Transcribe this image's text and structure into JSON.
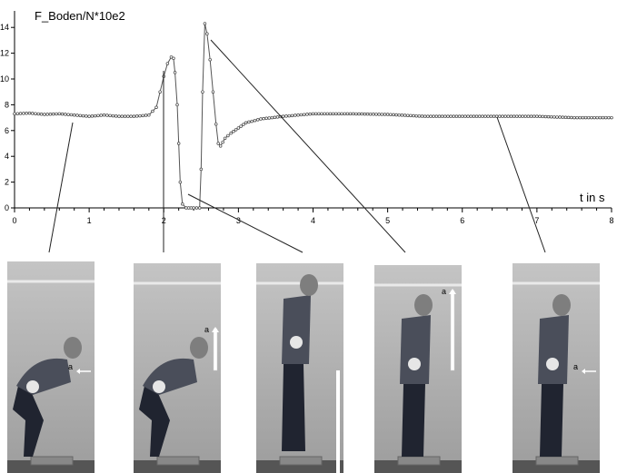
{
  "chart_data": {
    "type": "line",
    "ylabel": "F_Boden/N*10e2",
    "xlabel": "t in s",
    "xlim": [
      0,
      8
    ],
    "ylim": [
      0,
      15
    ],
    "x_ticks": [
      "0",
      "1",
      "2",
      "3",
      "4",
      "5",
      "6",
      "7",
      "8"
    ],
    "y_ticks": [
      "0",
      "2",
      "4",
      "6",
      "8",
      "10",
      "12",
      "14"
    ],
    "grid": false,
    "series": [
      {
        "points": [
          [
            0.0,
            7.3
          ],
          [
            0.2,
            7.35
          ],
          [
            0.4,
            7.25
          ],
          [
            0.6,
            7.3
          ],
          [
            0.8,
            7.2
          ],
          [
            1.0,
            7.1
          ],
          [
            1.2,
            7.2
          ],
          [
            1.4,
            7.1
          ],
          [
            1.6,
            7.1
          ],
          [
            1.8,
            7.2
          ],
          [
            1.9,
            7.8
          ],
          [
            1.95,
            9.0
          ],
          [
            2.0,
            10.2
          ],
          [
            2.05,
            11.2
          ],
          [
            2.1,
            11.7
          ],
          [
            2.13,
            11.6
          ],
          [
            2.15,
            10.5
          ],
          [
            2.18,
            8.0
          ],
          [
            2.2,
            5.0
          ],
          [
            2.22,
            2.0
          ],
          [
            2.25,
            0.3
          ],
          [
            2.3,
            0.0
          ],
          [
            2.4,
            0.0
          ],
          [
            2.48,
            0.0
          ],
          [
            2.5,
            3.0
          ],
          [
            2.52,
            9.0
          ],
          [
            2.55,
            14.3
          ],
          [
            2.58,
            13.5
          ],
          [
            2.62,
            11.5
          ],
          [
            2.66,
            9.0
          ],
          [
            2.7,
            6.5
          ],
          [
            2.73,
            5.0
          ],
          [
            2.76,
            4.8
          ],
          [
            2.82,
            5.4
          ],
          [
            2.9,
            5.8
          ],
          [
            3.0,
            6.2
          ],
          [
            3.1,
            6.6
          ],
          [
            3.3,
            6.9
          ],
          [
            3.6,
            7.1
          ],
          [
            4.0,
            7.3
          ],
          [
            4.5,
            7.3
          ],
          [
            5.0,
            7.25
          ],
          [
            5.5,
            7.1
          ],
          [
            6.0,
            7.1
          ],
          [
            6.5,
            7.1
          ],
          [
            7.0,
            7.1
          ],
          [
            7.5,
            7.0
          ],
          [
            8.0,
            7.0
          ]
        ]
      }
    ],
    "photo_annotations": [
      {
        "label": "a",
        "arrow": "left"
      },
      {
        "label": "a",
        "arrow": "up"
      },
      {
        "label": "",
        "arrow": "down"
      },
      {
        "label": "a",
        "arrow": "up"
      },
      {
        "label": "a",
        "arrow": "left"
      }
    ]
  }
}
